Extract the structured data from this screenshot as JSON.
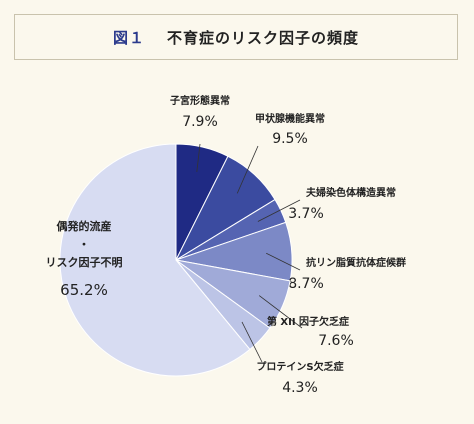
{
  "figure": {
    "number": "図１",
    "title": "不育症のリスク因子の頻度"
  },
  "chart_data": {
    "type": "pie",
    "title": "不育症のリスク因子の頻度",
    "start": "12 o'clock",
    "direction": "clockwise",
    "slices": [
      {
        "label": "子宮形態異常",
        "value": 7.9,
        "display": "7.9%",
        "color": "#1f2a84"
      },
      {
        "label": "甲状腺機能異常",
        "value": 9.5,
        "display": "9.5%",
        "color": "#3b4ba0"
      },
      {
        "label": "夫婦染色体構造異常",
        "value": 3.7,
        "display": "3.7%",
        "color": "#5564b2"
      },
      {
        "label": "抗リン脂質抗体症候群",
        "value": 8.7,
        "display": "8.7%",
        "color": "#7c89c6"
      },
      {
        "label": "第 XII 因子欠乏症",
        "value": 7.6,
        "display": "7.6%",
        "color": "#a0aad8"
      },
      {
        "label": "プロテインS欠乏症",
        "value": 4.3,
        "display": "4.3%",
        "color": "#bcc4e6"
      },
      {
        "label_lines": [
          "偶発的流産",
          "・",
          "リスク因子不明"
        ],
        "label": "偶発的流産・リスク因子不明",
        "value": 65.2,
        "display": "65.2%",
        "color": "#d7dcf2"
      }
    ]
  }
}
